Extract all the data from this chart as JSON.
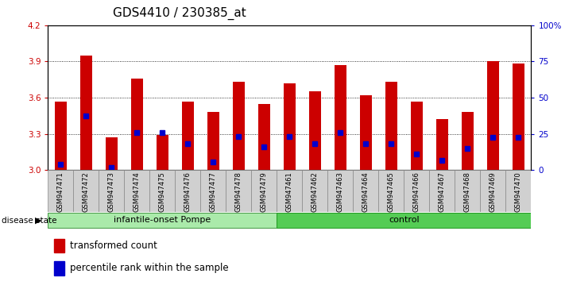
{
  "title": "GDS4410 / 230385_at",
  "samples": [
    "GSM947471",
    "GSM947472",
    "GSM947473",
    "GSM947474",
    "GSM947475",
    "GSM947476",
    "GSM947477",
    "GSM947478",
    "GSM947479",
    "GSM947461",
    "GSM947462",
    "GSM947463",
    "GSM947464",
    "GSM947465",
    "GSM947466",
    "GSM947467",
    "GSM947468",
    "GSM947469",
    "GSM947470"
  ],
  "red_values": [
    3.57,
    3.95,
    3.27,
    3.76,
    3.29,
    3.57,
    3.48,
    3.73,
    3.55,
    3.72,
    3.65,
    3.87,
    3.62,
    3.73,
    3.57,
    3.42,
    3.48,
    3.9,
    3.88
  ],
  "blue_values": [
    3.05,
    3.45,
    3.02,
    3.31,
    3.31,
    3.22,
    3.07,
    3.28,
    3.19,
    3.28,
    3.22,
    3.31,
    3.22,
    3.22,
    3.13,
    3.08,
    3.18,
    3.27,
    3.27
  ],
  "group1_count": 9,
  "group2_count": 10,
  "group1_label": "infantile-onset Pompe",
  "group2_label": "control",
  "group1_color": "#aaeaaa",
  "group2_color": "#55cc55",
  "ymin": 3.0,
  "ymax": 4.2,
  "yticks": [
    3.0,
    3.3,
    3.6,
    3.9,
    4.2
  ],
  "right_yticks": [
    0,
    25,
    50,
    75,
    100
  ],
  "right_ytick_labels": [
    "0",
    "25",
    "50",
    "75",
    "100%"
  ],
  "bar_color": "#cc0000",
  "blue_color": "#0000cc",
  "bar_width": 0.45,
  "bg_color": "#ffffff",
  "tick_label_color": "#cc0000",
  "right_tick_label_color": "#0000cc",
  "title_fontsize": 11,
  "tick_fontsize": 7.5,
  "legend_fontsize": 8.5
}
